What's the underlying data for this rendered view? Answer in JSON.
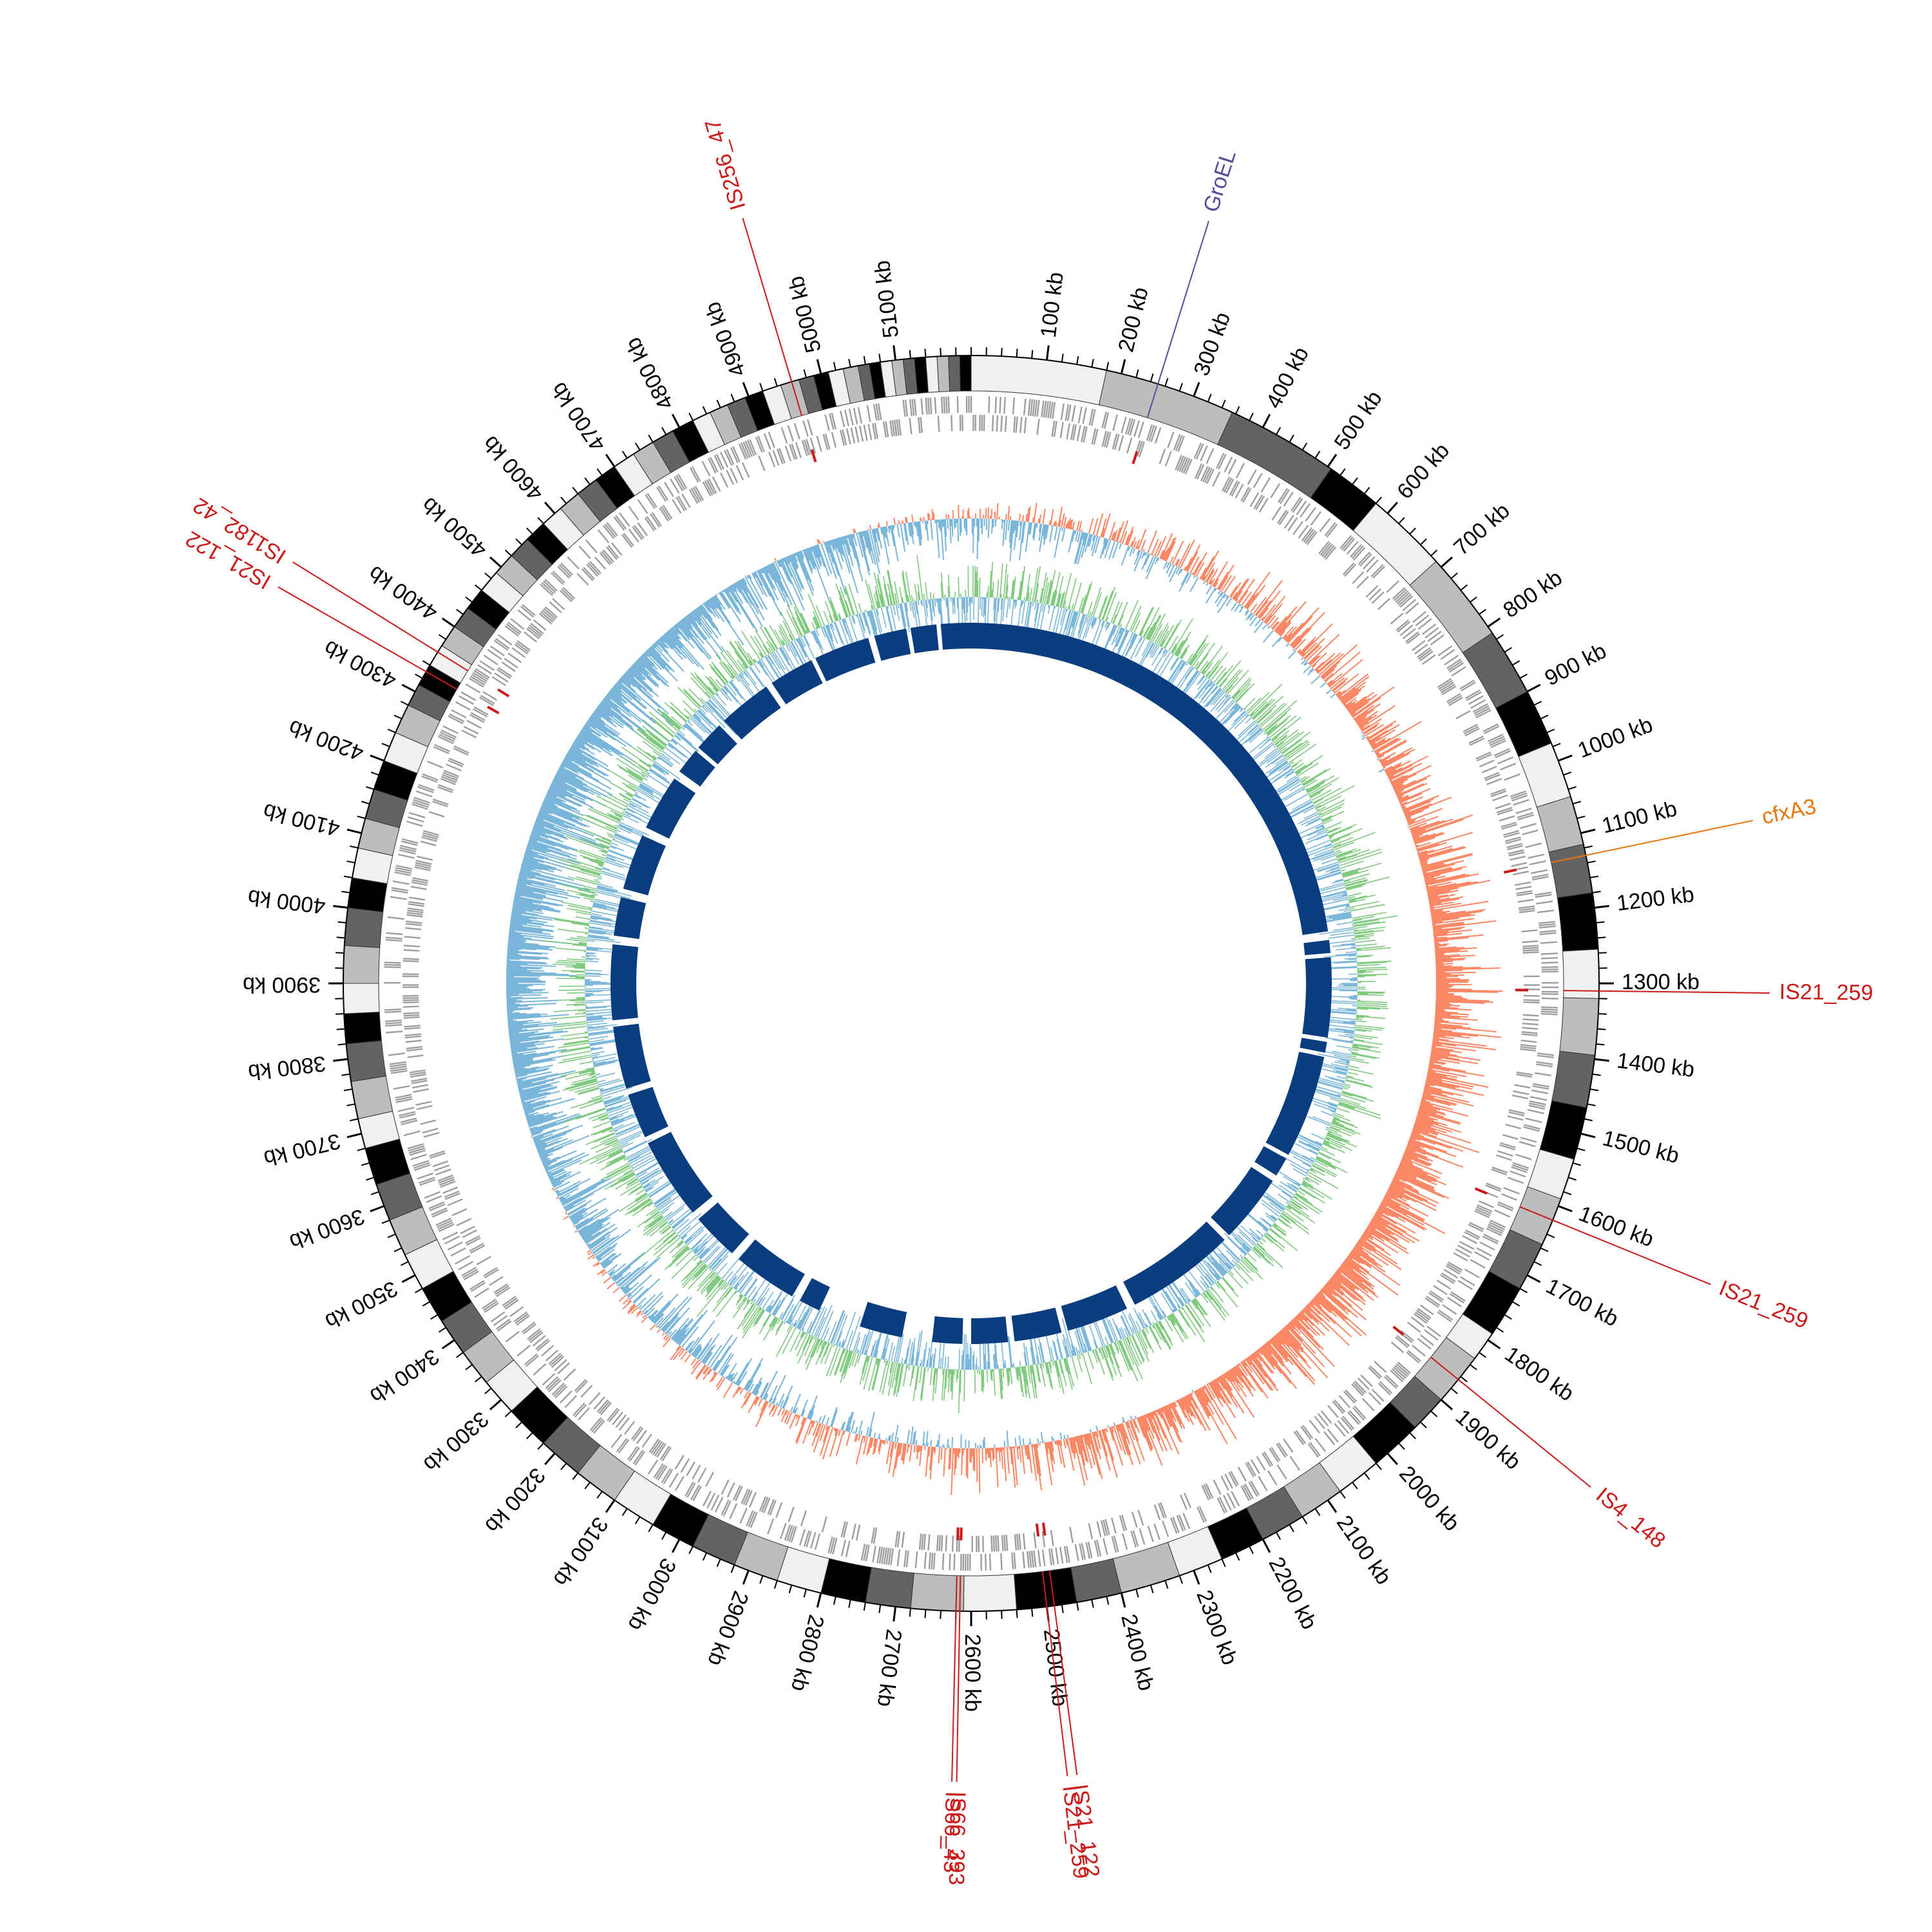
{
  "figure": {
    "type": "circular-genome-map",
    "genome_length_kb": 5200,
    "tick_label_unit": "kb",
    "tick_step_kb": 100
  },
  "ticks": [
    "100 kb",
    "200 kb",
    "300 kb",
    "400 kb",
    "500 kb",
    "600 kb",
    "700 kb",
    "800 kb",
    "900 kb",
    "1000 kb",
    "1100 kb",
    "1200 kb",
    "1300 kb",
    "1400 kb",
    "1500 kb",
    "1600 kb",
    "1700 kb",
    "1800 kb",
    "1900 kb",
    "2000 kb",
    "2100 kb",
    "2200 kb",
    "2300 kb",
    "2400 kb",
    "2500 kb",
    "2600 kb",
    "2700 kb",
    "2800 kb",
    "2900 kb",
    "3000 kb",
    "3100 kb",
    "3200 kb",
    "3300 kb",
    "3400 kb",
    "3500 kb",
    "3600 kb",
    "3700 kb",
    "3800 kb",
    "3900 kb",
    "4000 kb",
    "4100 kb",
    "4200 kb",
    "4300 kb",
    "4400 kb",
    "4500 kb",
    "4600 kb",
    "4700 kb",
    "4800 kb",
    "4900 kb",
    "5000 kb",
    "5100 kb"
  ],
  "ticks_numeric_kb": [
    100,
    200,
    300,
    400,
    500,
    600,
    700,
    800,
    900,
    1000,
    1100,
    1200,
    1300,
    1400,
    1500,
    1600,
    1700,
    1800,
    1900,
    2000,
    2100,
    2200,
    2300,
    2400,
    2500,
    2600,
    2700,
    2800,
    2900,
    3000,
    3100,
    3200,
    3300,
    3400,
    3500,
    3600,
    3700,
    3800,
    3900,
    4000,
    4100,
    4200,
    4300,
    4400,
    4500,
    4600,
    4700,
    4800,
    4900,
    5000,
    5100
  ],
  "features": [
    {
      "label": "GroEL",
      "position_kb": 250,
      "color": "#5b4a9b"
    },
    {
      "label": "cfxA3",
      "position_kb": 1130,
      "color": "#e8750e"
    },
    {
      "label": "IS21_259",
      "position_kb": 1310,
      "color": "#cc1a1a"
    },
    {
      "label": "IS21_259",
      "position_kb": 1620,
      "color": "#cc1a1a"
    },
    {
      "label": "IS4_148",
      "position_kb": 1865,
      "color": "#cc1a1a"
    },
    {
      "label": "IS21_122",
      "position_kb": 2490,
      "color": "#cc1a1a"
    },
    {
      "label": "IS21_259",
      "position_kb": 2500,
      "color": "#cc1a1a"
    },
    {
      "label": "IS66_393",
      "position_kb": 2615,
      "color": "#cc1a1a"
    },
    {
      "label": "IS66_43",
      "position_kb": 2620,
      "color": "#cc1a1a"
    },
    {
      "label": "IS21_122",
      "position_kb": 4330,
      "color": "#cc1a1a"
    },
    {
      "label": "IS1182_42",
      "position_kb": 4360,
      "color": "#cc1a1a"
    },
    {
      "label": "IS256_47",
      "position_kb": 4960,
      "color": "#cc1a1a"
    }
  ],
  "tracks": {
    "contigs_colors": [
      "#f0f0f0",
      "#bdbdbd",
      "#636363",
      "#000000"
    ],
    "gene_color": "#9e9e9e",
    "gc_skew_positive": "#fb8765",
    "gc_skew_negative": "#7ab6d9",
    "gc_content_above": "#7fc97f",
    "gc_content_below": "#7ab6d9",
    "blast_hits_color": "#0a3d7f",
    "mobile_element_marker": "#cc1a1a"
  }
}
